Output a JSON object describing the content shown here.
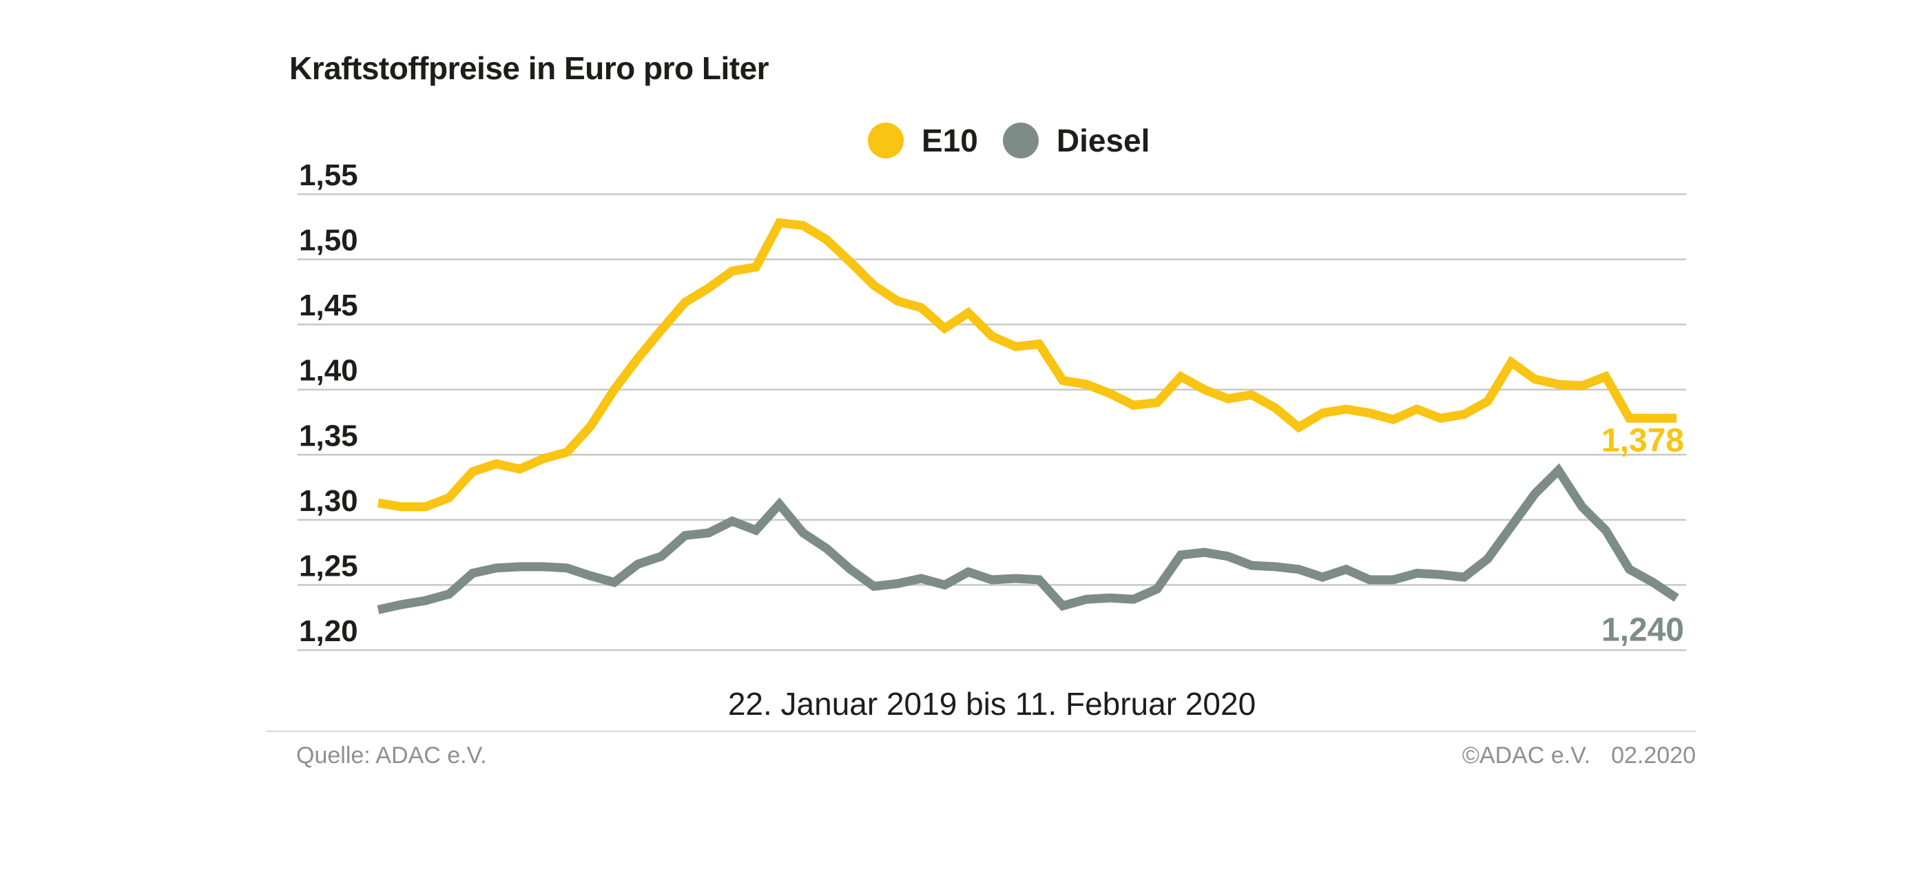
{
  "chart_data": {
    "type": "line",
    "title": "Kraftstoffpreise in Euro pro Liter",
    "unit": "Euro pro Liter",
    "x_caption": "22. Januar 2019 bis 11. Februar 2020",
    "x_start": "22. Januar 2019",
    "x_end": "11. Februar 2020",
    "interval": "weekly",
    "ylim": [
      1.2,
      1.55
    ],
    "grid": "horizontal",
    "legend_position": "top-center",
    "y_ticks": [
      {
        "label": "1,55",
        "value": 1.55
      },
      {
        "label": "1,50",
        "value": 1.5
      },
      {
        "label": "1,45",
        "value": 1.45
      },
      {
        "label": "1,40",
        "value": 1.4
      },
      {
        "label": "1,35",
        "value": 1.35
      },
      {
        "label": "1,30",
        "value": 1.3
      },
      {
        "label": "1,25",
        "value": 1.25
      },
      {
        "label": "1,20",
        "value": 1.2
      }
    ],
    "series": [
      {
        "name": "E10",
        "color": "#F9C412",
        "end_label": "1,378",
        "end_value": 1.378,
        "values": [
          1.313,
          1.31,
          1.31,
          1.317,
          1.337,
          1.343,
          1.339,
          1.347,
          1.352,
          1.372,
          1.4,
          1.424,
          1.446,
          1.467,
          1.478,
          1.491,
          1.494,
          1.528,
          1.526,
          1.515,
          1.498,
          1.48,
          1.468,
          1.463,
          1.447,
          1.459,
          1.441,
          1.433,
          1.435,
          1.407,
          1.404,
          1.397,
          1.388,
          1.39,
          1.41,
          1.4,
          1.393,
          1.396,
          1.386,
          1.371,
          1.382,
          1.385,
          1.382,
          1.377,
          1.385,
          1.378,
          1.381,
          1.391,
          1.421,
          1.408,
          1.404,
          1.403,
          1.41,
          1.378,
          1.378,
          1.378
        ]
      },
      {
        "name": "Diesel",
        "color": "#7D8C86",
        "end_label": "1,240",
        "end_value": 1.24,
        "values": [
          1.231,
          1.235,
          1.238,
          1.243,
          1.259,
          1.263,
          1.264,
          1.264,
          1.263,
          1.257,
          1.252,
          1.266,
          1.272,
          1.288,
          1.29,
          1.299,
          1.292,
          1.312,
          1.29,
          1.278,
          1.262,
          1.249,
          1.251,
          1.255,
          1.25,
          1.26,
          1.254,
          1.255,
          1.254,
          1.234,
          1.239,
          1.24,
          1.239,
          1.247,
          1.273,
          1.275,
          1.272,
          1.265,
          1.264,
          1.262,
          1.256,
          1.262,
          1.254,
          1.254,
          1.259,
          1.258,
          1.256,
          1.27,
          1.295,
          1.32,
          1.338,
          1.31,
          1.292,
          1.262,
          1.252,
          1.24
        ]
      }
    ]
  },
  "legend": {
    "items": [
      {
        "label": "E10",
        "color": "#F9C412"
      },
      {
        "label": "Diesel",
        "color": "#7D8C86"
      }
    ]
  },
  "footer": {
    "source": "Quelle: ADAC e.V.",
    "copyright": "©ADAC e.V.",
    "date": "02.2020"
  },
  "colors": {
    "e10": "#F9C412",
    "diesel": "#7D8C86",
    "gridline": "#C7C7C7",
    "text": "#1D1D1B",
    "muted_text": "#8F8F8F",
    "divider": "#D9D9D9",
    "background": "#FFFFFF"
  }
}
